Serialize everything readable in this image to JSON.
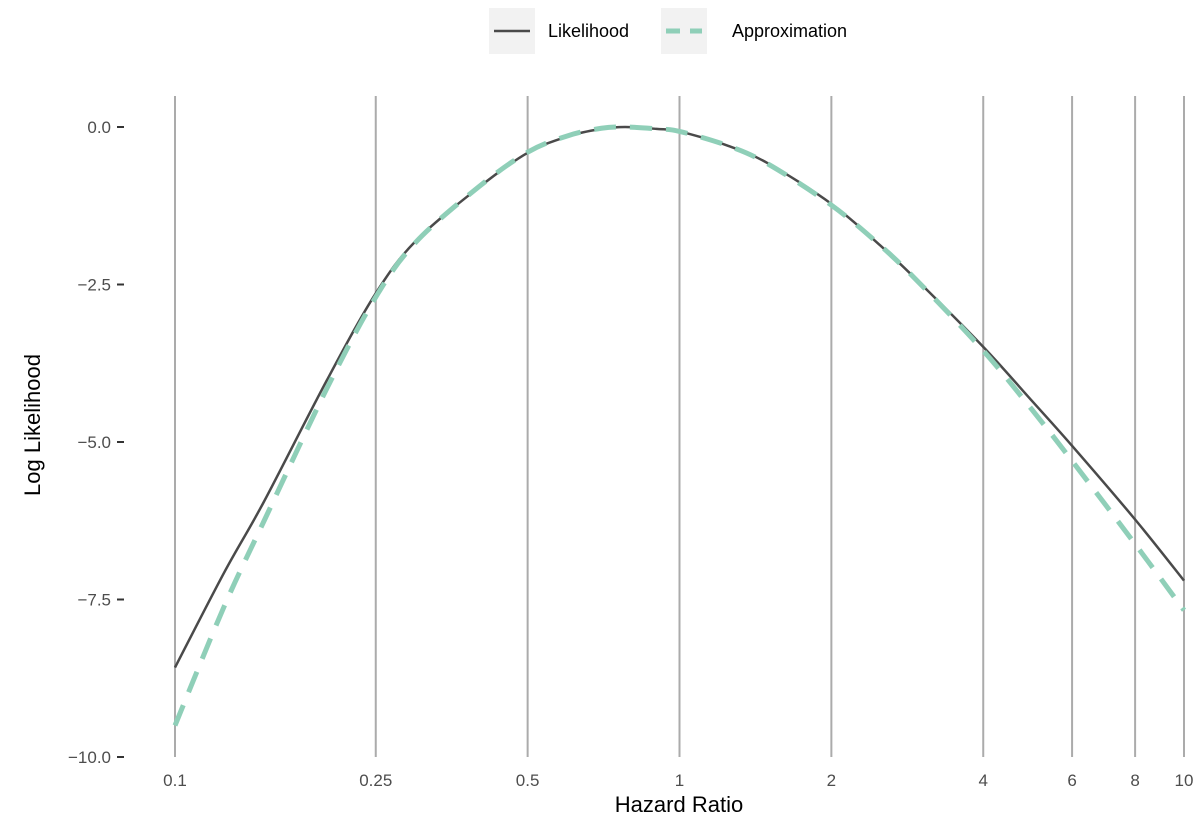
{
  "chart_data": {
    "type": "line",
    "title": "",
    "xlabel": "Hazard Ratio",
    "ylabel": "Log Likelihood",
    "x_scale": "log",
    "xlim": [
      0.1,
      10
    ],
    "ylim": [
      -10,
      0
    ],
    "x_ticks": [
      0.1,
      0.25,
      0.5,
      1,
      2,
      4,
      6,
      8,
      10
    ],
    "x_tick_labels": [
      "0.1",
      "0.25",
      "0.5",
      "1",
      "2",
      "4",
      "6",
      "8",
      "10"
    ],
    "y_ticks": [
      0,
      -2.5,
      -5,
      -7.5,
      -10
    ],
    "y_tick_labels": [
      "0.0",
      "−2.5",
      "−5.0",
      "−7.5",
      "−10.0"
    ],
    "grid": "vertical major lines at x ticks",
    "legend_position": "top",
    "series": [
      {
        "name": "Likelihood",
        "style": "solid",
        "color": "#4a4a4a",
        "x": [
          0.1,
          0.125,
          0.15,
          0.2,
          0.25,
          0.3,
          0.4,
          0.5,
          0.6,
          0.7,
          0.78,
          0.9,
          1,
          1.25,
          1.5,
          2,
          2.5,
          3,
          4,
          5,
          6,
          8,
          10
        ],
        "y": [
          -8.58,
          -7.08,
          -5.95,
          -4.02,
          -2.64,
          -1.81,
          -0.96,
          -0.41,
          -0.15,
          -0.03,
          0.0,
          -0.03,
          -0.07,
          -0.3,
          -0.58,
          -1.22,
          -1.88,
          -2.48,
          -3.49,
          -4.35,
          -5.06,
          -6.23,
          -7.2
        ]
      },
      {
        "name": "Approximation",
        "style": "dashed",
        "color": "#8fcfb8",
        "x": [
          0.1,
          0.125,
          0.15,
          0.2,
          0.25,
          0.3,
          0.4,
          0.5,
          0.6,
          0.7,
          0.78,
          0.9,
          1,
          1.25,
          1.5,
          2,
          2.5,
          3,
          4,
          5,
          6,
          8,
          10
        ],
        "y": [
          -9.5,
          -7.62,
          -6.26,
          -4.15,
          -2.7,
          -1.83,
          -0.95,
          -0.4,
          -0.14,
          -0.02,
          0.0,
          -0.03,
          -0.07,
          -0.3,
          -0.59,
          -1.24,
          -1.88,
          -2.49,
          -3.55,
          -4.49,
          -5.3,
          -6.62,
          -7.67
        ]
      }
    ]
  }
}
